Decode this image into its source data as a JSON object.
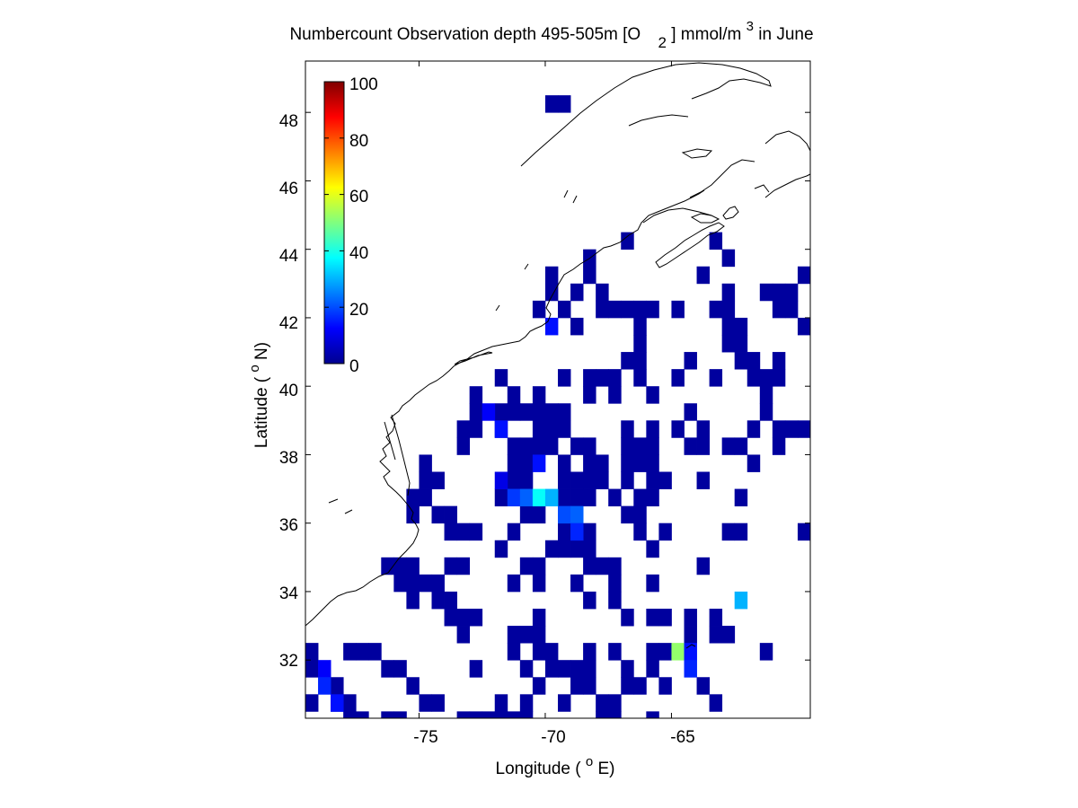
{
  "figure": {
    "title_main": "Numbercount Observation depth 495-505m [O",
    "title_sub": "2",
    "title_unit": "] mmol/m",
    "title_sup": "3",
    "title_end": " in June"
  },
  "axes": {
    "xlabel_pre": "Longitude ( ",
    "xlabel_deg": "o",
    "xlabel_post": "E)",
    "ylabel_pre": "Latitude ( ",
    "ylabel_deg": "o",
    "ylabel_post": "N)",
    "xticks": [
      "-75",
      "-70",
      "-65"
    ],
    "yticks": [
      "48",
      "46",
      "44",
      "42",
      "40",
      "38",
      "36",
      "34",
      "32"
    ]
  },
  "colorbar": {
    "ticks": [
      "100",
      "80",
      "60",
      "40",
      "20",
      "0"
    ],
    "colormap": "jet"
  },
  "chart_data": {
    "type": "heatmap",
    "title": "Numbercount Observation depth 495-505m [O2] mmol/m3 in June",
    "xlabel": "Longitude ( oE)",
    "ylabel": "Latitude ( oN)",
    "xlim": [
      -79.5,
      -59.5
    ],
    "ylim": [
      30.3,
      49.5
    ],
    "clim": [
      0,
      100
    ],
    "colormap": "jet",
    "cell_size_deg": 0.5,
    "value_default": 3,
    "cells": [
      [
        -69.75,
        48.25
      ],
      [
        -69.25,
        48.25
      ],
      [
        -66.75,
        44.25
      ],
      [
        -63.25,
        44.25
      ],
      [
        -68.25,
        43.75
      ],
      [
        -62.75,
        43.75
      ],
      [
        -69.75,
        43.25
      ],
      [
        -68.25,
        43.25
      ],
      [
        -63.75,
        43.25
      ],
      [
        -59.75,
        43.25
      ],
      [
        -69.75,
        42.75
      ],
      [
        -68.75,
        42.75
      ],
      [
        -67.75,
        42.75
      ],
      [
        -62.75,
        42.75
      ],
      [
        -61.25,
        42.75
      ],
      [
        -60.75,
        42.75
      ],
      [
        -60.25,
        42.75
      ],
      [
        -70.25,
        42.25
      ],
      [
        -69.25,
        42.25
      ],
      [
        -67.75,
        42.25
      ],
      [
        -67.25,
        42.25
      ],
      [
        -66.75,
        42.25
      ],
      [
        -66.25,
        42.25
      ],
      [
        -65.75,
        42.25
      ],
      [
        -64.75,
        42.25
      ],
      [
        -63.25,
        42.25
      ],
      [
        -62.75,
        42.25
      ],
      [
        -60.75,
        42.25
      ],
      [
        -60.25,
        42.25
      ],
      [
        -68.75,
        41.75
      ],
      [
        -66.25,
        41.75
      ],
      [
        -62.75,
        41.75
      ],
      [
        -62.25,
        41.75
      ],
      [
        -59.75,
        41.75
      ],
      [
        -66.25,
        41.25
      ],
      [
        -62.75,
        41.25
      ],
      [
        -62.25,
        41.25
      ],
      [
        -66.75,
        40.75
      ],
      [
        -66.25,
        40.75
      ],
      [
        -64.25,
        40.75
      ],
      [
        -62.25,
        40.75
      ],
      [
        -61.75,
        40.75
      ],
      [
        -60.75,
        40.75
      ],
      [
        -71.75,
        40.25
      ],
      [
        -69.25,
        40.25
      ],
      [
        -68.25,
        40.25
      ],
      [
        -67.75,
        40.25
      ],
      [
        -67.25,
        40.25
      ],
      [
        -66.25,
        40.25
      ],
      [
        -64.75,
        40.25
      ],
      [
        -63.25,
        40.25
      ],
      [
        -61.75,
        40.25
      ],
      [
        -61.25,
        40.25
      ],
      [
        -60.75,
        40.25
      ],
      [
        -72.75,
        39.75
      ],
      [
        -71.25,
        39.75
      ],
      [
        -70.25,
        39.75
      ],
      [
        -68.25,
        39.75
      ],
      [
        -67.25,
        39.75
      ],
      [
        -65.75,
        39.75
      ],
      [
        -61.25,
        39.75
      ],
      [
        -72.75,
        39.25
      ],
      [
        -71.75,
        39.25
      ],
      [
        -71.25,
        39.25
      ],
      [
        -70.75,
        39.25
      ],
      [
        -70.25,
        39.25
      ],
      [
        -69.75,
        39.25
      ],
      [
        -69.25,
        39.25
      ],
      [
        -64.25,
        39.25
      ],
      [
        -61.25,
        39.25
      ],
      [
        -73.25,
        38.75
      ],
      [
        -72.75,
        38.75
      ],
      [
        -71.75,
        38.75
      ],
      [
        -70.25,
        38.75
      ],
      [
        -69.75,
        38.75
      ],
      [
        -69.25,
        38.75
      ],
      [
        -66.75,
        38.75
      ],
      [
        -65.75,
        38.75
      ],
      [
        -64.75,
        38.75
      ],
      [
        -63.75,
        38.75
      ],
      [
        -61.75,
        38.75
      ],
      [
        -60.75,
        38.75
      ],
      [
        -60.25,
        38.75
      ],
      [
        -59.75,
        38.75
      ],
      [
        -73.25,
        38.25
      ],
      [
        -71.25,
        38.25
      ],
      [
        -70.75,
        38.25
      ],
      [
        -70.25,
        38.25
      ],
      [
        -69.75,
        38.25
      ],
      [
        -68.75,
        38.25
      ],
      [
        -68.25,
        38.25
      ],
      [
        -66.75,
        38.25
      ],
      [
        -66.25,
        38.25
      ],
      [
        -65.75,
        38.25
      ],
      [
        -64.25,
        38.25
      ],
      [
        -63.75,
        38.25
      ],
      [
        -62.75,
        38.25
      ],
      [
        -62.25,
        38.25
      ],
      [
        -60.75,
        38.25
      ],
      [
        -74.75,
        37.75
      ],
      [
        -71.25,
        37.75
      ],
      [
        -70.75,
        37.75
      ],
      [
        -69.25,
        37.75
      ],
      [
        -68.25,
        37.75
      ],
      [
        -67.75,
        37.75
      ],
      [
        -66.75,
        37.75
      ],
      [
        -66.25,
        37.75
      ],
      [
        -65.75,
        37.75
      ],
      [
        -61.75,
        37.75
      ],
      [
        -74.75,
        37.25
      ],
      [
        -74.25,
        37.25
      ],
      [
        -71.25,
        37.25
      ],
      [
        -70.75,
        37.25
      ],
      [
        -69.25,
        37.25
      ],
      [
        -68.75,
        37.25
      ],
      [
        -68.25,
        37.25
      ],
      [
        -67.75,
        37.25
      ],
      [
        -66.75,
        37.25
      ],
      [
        -65.75,
        37.25
      ],
      [
        -65.25,
        37.25
      ],
      [
        -63.75,
        37.25
      ],
      [
        -75.25,
        36.75
      ],
      [
        -74.75,
        36.75
      ],
      [
        -71.75,
        36.75
      ],
      [
        -69.25,
        36.75
      ],
      [
        -68.75,
        36.75
      ],
      [
        -68.25,
        36.75
      ],
      [
        -67.25,
        36.75
      ],
      [
        -66.25,
        36.75
      ],
      [
        -65.75,
        36.75
      ],
      [
        -62.25,
        36.75
      ],
      [
        -75.25,
        36.25
      ],
      [
        -74.25,
        36.25
      ],
      [
        -73.75,
        36.25
      ],
      [
        -70.75,
        36.25
      ],
      [
        -70.25,
        36.25
      ],
      [
        -66.75,
        36.25
      ],
      [
        -66.25,
        36.25
      ],
      [
        -73.75,
        35.75
      ],
      [
        -73.25,
        35.75
      ],
      [
        -72.75,
        35.75
      ],
      [
        -71.25,
        35.75
      ],
      [
        -69.25,
        35.75
      ],
      [
        -68.25,
        35.75
      ],
      [
        -66.25,
        35.75
      ],
      [
        -65.25,
        35.75
      ],
      [
        -62.75,
        35.75
      ],
      [
        -62.25,
        35.75
      ],
      [
        -59.75,
        35.75
      ],
      [
        -71.75,
        35.25
      ],
      [
        -69.75,
        35.25
      ],
      [
        -69.25,
        35.25
      ],
      [
        -68.75,
        35.25
      ],
      [
        -68.25,
        35.25
      ],
      [
        -65.75,
        35.25
      ],
      [
        -76.25,
        34.75
      ],
      [
        -75.75,
        34.75
      ],
      [
        -75.25,
        34.75
      ],
      [
        -73.75,
        34.75
      ],
      [
        -73.25,
        34.75
      ],
      [
        -70.75,
        34.75
      ],
      [
        -70.25,
        34.75
      ],
      [
        -68.25,
        34.75
      ],
      [
        -67.75,
        34.75
      ],
      [
        -67.25,
        34.75
      ],
      [
        -63.75,
        34.75
      ],
      [
        -75.75,
        34.25
      ],
      [
        -75.25,
        34.25
      ],
      [
        -74.75,
        34.25
      ],
      [
        -74.25,
        34.25
      ],
      [
        -71.25,
        34.25
      ],
      [
        -70.25,
        34.25
      ],
      [
        -68.75,
        34.25
      ],
      [
        -67.25,
        34.25
      ],
      [
        -65.75,
        34.25
      ],
      [
        -75.25,
        33.75
      ],
      [
        -74.25,
        33.75
      ],
      [
        -73.75,
        33.75
      ],
      [
        -68.25,
        33.75
      ],
      [
        -67.25,
        33.75
      ],
      [
        -73.75,
        33.25
      ],
      [
        -73.25,
        33.25
      ],
      [
        -72.75,
        33.25
      ],
      [
        -70.25,
        33.25
      ],
      [
        -66.75,
        33.25
      ],
      [
        -65.75,
        33.25
      ],
      [
        -65.25,
        33.25
      ],
      [
        -64.25,
        33.25
      ],
      [
        -63.25,
        33.25
      ],
      [
        -73.25,
        32.75
      ],
      [
        -71.25,
        32.75
      ],
      [
        -70.75,
        32.75
      ],
      [
        -70.25,
        32.75
      ],
      [
        -64.25,
        32.75
      ],
      [
        -63.25,
        32.75
      ],
      [
        -62.75,
        32.75
      ],
      [
        -79.25,
        32.25
      ],
      [
        -77.75,
        32.25
      ],
      [
        -77.25,
        32.25
      ],
      [
        -76.75,
        32.25
      ],
      [
        -71.25,
        32.25
      ],
      [
        -70.25,
        32.25
      ],
      [
        -69.75,
        32.25
      ],
      [
        -68.25,
        32.25
      ],
      [
        -67.25,
        32.25
      ],
      [
        -65.75,
        32.25
      ],
      [
        -65.25,
        32.25
      ],
      [
        -61.25,
        32.25
      ],
      [
        -79.25,
        31.75
      ],
      [
        -76.25,
        31.75
      ],
      [
        -75.75,
        31.75
      ],
      [
        -72.75,
        31.75
      ],
      [
        -70.75,
        31.75
      ],
      [
        -69.75,
        31.75
      ],
      [
        -69.25,
        31.75
      ],
      [
        -68.75,
        31.75
      ],
      [
        -68.25,
        31.75
      ],
      [
        -66.75,
        31.75
      ],
      [
        -65.75,
        31.75
      ],
      [
        -78.25,
        31.25
      ],
      [
        -75.25,
        31.25
      ],
      [
        -70.25,
        31.25
      ],
      [
        -68.75,
        31.25
      ],
      [
        -68.25,
        31.25
      ],
      [
        -66.75,
        31.25
      ],
      [
        -66.25,
        31.25
      ],
      [
        -65.25,
        31.25
      ],
      [
        -63.75,
        31.25
      ],
      [
        -79.25,
        30.75
      ],
      [
        -78.25,
        30.75
      ],
      [
        -77.75,
        30.75
      ],
      [
        -74.75,
        30.75
      ],
      [
        -74.25,
        30.75
      ],
      [
        -71.75,
        30.75
      ],
      [
        -70.75,
        30.75
      ],
      [
        -69.25,
        30.75
      ],
      [
        -67.75,
        30.75
      ],
      [
        -67.25,
        30.75
      ],
      [
        -63.25,
        30.75
      ],
      [
        -79.75,
        30.25
      ],
      [
        -77.75,
        30.25
      ],
      [
        -77.25,
        30.25
      ],
      [
        -76.25,
        30.25
      ],
      [
        -75.75,
        30.25
      ],
      [
        -73.25,
        30.25
      ],
      [
        -72.75,
        30.25
      ],
      [
        -72.25,
        30.25
      ],
      [
        -71.75,
        30.25
      ],
      [
        -71.25,
        30.25
      ],
      [
        -70.75,
        30.25
      ],
      [
        -67.75,
        30.25
      ],
      [
        -67.25,
        30.25
      ],
      [
        -65.75,
        30.25
      ]
    ],
    "cells_valued": [
      [
        -72.25,
        39.25,
        12
      ],
      [
        -71.75,
        38.75,
        14
      ],
      [
        -70.25,
        37.75,
        14
      ],
      [
        -71.75,
        37.25,
        10
      ],
      [
        -71.25,
        36.75,
        18
      ],
      [
        -70.75,
        36.75,
        22
      ],
      [
        -70.25,
        36.75,
        38
      ],
      [
        -69.75,
        36.75,
        30
      ],
      [
        -69.25,
        36.25,
        20
      ],
      [
        -68.75,
        36.25,
        22
      ],
      [
        -68.75,
        35.75,
        16
      ],
      [
        -69.75,
        41.75,
        14
      ],
      [
        -62.25,
        33.75,
        30
      ],
      [
        -64.75,
        32.25,
        52
      ],
      [
        -64.25,
        32.25,
        14
      ],
      [
        -64.25,
        31.75,
        16
      ],
      [
        -78.75,
        31.75,
        12
      ],
      [
        -78.75,
        31.25,
        16
      ],
      [
        -78.25,
        30.75,
        14
      ]
    ]
  }
}
